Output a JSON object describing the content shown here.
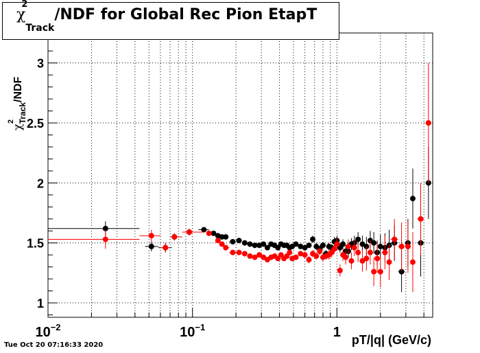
{
  "chart_data": {
    "type": "scatter",
    "title": {
      "chi": "χ",
      "sup": "2",
      "sub": "Track",
      "rest": "/NDF for Global Rec Pion EtapT"
    },
    "xlabel": "pT/|q| (GeV/c)",
    "ylabel": {
      "chi": "χ",
      "sup": "2",
      "sub": "Track",
      "rest": "/NDF"
    },
    "x_scale": "log",
    "xlim": [
      0.01,
      4.6
    ],
    "ylim": [
      0.88,
      3.25
    ],
    "x_ticks": [
      {
        "value": 0.01,
        "base": "10",
        "exp": "−2"
      },
      {
        "value": 0.1,
        "base": "10",
        "exp": "−1"
      },
      {
        "value": 1,
        "base": "1",
        "exp": ""
      }
    ],
    "y_ticks": [
      {
        "value": 1,
        "label": "1"
      },
      {
        "value": 1.5,
        "label": "1.5"
      },
      {
        "value": 2,
        "label": "2"
      },
      {
        "value": 2.5,
        "label": "2.5"
      },
      {
        "value": 3,
        "label": "3"
      }
    ],
    "grid": true,
    "series": [
      {
        "color": "#000000",
        "points": [
          [
            0.025,
            1.62,
            0.06,
            0.01,
            0.043
          ],
          [
            0.052,
            1.47,
            0.04,
            0.047,
            0.058
          ],
          [
            0.065,
            1.46,
            0.04,
            0.058,
            0.072
          ],
          [
            0.075,
            1.55,
            0.03,
            0.072,
            0.085
          ],
          [
            0.095,
            1.59,
            0.02,
            0.085,
            0.107
          ],
          [
            0.12,
            1.61,
            0.02,
            0.11,
            0.13
          ],
          [
            0.14,
            1.58,
            0.02,
            0.135,
            0.145
          ],
          [
            0.15,
            1.56,
            0.02,
            0.145,
            0.155
          ],
          [
            0.16,
            1.55,
            0.02,
            0.155,
            0.165
          ],
          [
            0.17,
            1.55,
            0.02,
            0.165,
            0.175
          ],
          [
            0.19,
            1.51,
            0.02,
            0.18,
            0.2
          ],
          [
            0.21,
            1.52,
            0.02,
            0.2,
            0.22
          ],
          [
            0.23,
            1.5,
            0.02,
            0.22,
            0.24
          ],
          [
            0.25,
            1.49,
            0.02,
            0.24,
            0.26
          ],
          [
            0.27,
            1.48,
            0.02,
            0.26,
            0.28
          ],
          [
            0.29,
            1.48,
            0.02,
            0.28,
            0.3
          ],
          [
            0.31,
            1.49,
            0.02,
            0.3,
            0.32
          ],
          [
            0.33,
            1.46,
            0.02,
            0.32,
            0.34
          ],
          [
            0.35,
            1.49,
            0.02,
            0.34,
            0.36
          ],
          [
            0.37,
            1.48,
            0.02,
            0.36,
            0.38
          ],
          [
            0.39,
            1.46,
            0.02,
            0.38,
            0.4
          ],
          [
            0.41,
            1.49,
            0.02,
            0.4,
            0.42
          ],
          [
            0.43,
            1.48,
            0.02,
            0.42,
            0.44
          ],
          [
            0.45,
            1.48,
            0.02,
            0.44,
            0.46
          ],
          [
            0.47,
            1.46,
            0.02,
            0.46,
            0.48
          ],
          [
            0.49,
            1.47,
            0.02,
            0.48,
            0.5
          ],
          [
            0.52,
            1.49,
            0.02,
            0.5,
            0.54
          ],
          [
            0.56,
            1.47,
            0.02,
            0.54,
            0.58
          ],
          [
            0.6,
            1.46,
            0.02,
            0.58,
            0.62
          ],
          [
            0.64,
            1.48,
            0.02,
            0.62,
            0.66
          ],
          [
            0.68,
            1.53,
            0.03,
            0.66,
            0.7
          ],
          [
            0.72,
            1.47,
            0.03,
            0.7,
            0.74
          ],
          [
            0.76,
            1.45,
            0.03,
            0.74,
            0.78
          ],
          [
            0.8,
            1.48,
            0.03,
            0.78,
            0.82
          ],
          [
            0.84,
            1.41,
            0.03,
            0.82,
            0.86
          ],
          [
            0.88,
            1.47,
            0.03,
            0.86,
            0.9
          ],
          [
            0.92,
            1.46,
            0.03,
            0.9,
            0.94
          ],
          [
            0.96,
            1.51,
            0.04,
            0.94,
            0.98
          ],
          [
            1.0,
            1.52,
            0.04,
            0.98,
            1.02
          ],
          [
            1.05,
            1.46,
            0.04,
            1.02,
            1.08
          ],
          [
            1.1,
            1.49,
            0.04,
            1.08,
            1.13
          ],
          [
            1.15,
            1.43,
            0.05,
            1.13,
            1.18
          ],
          [
            1.2,
            1.43,
            0.05,
            1.18,
            1.23
          ],
          [
            1.26,
            1.49,
            0.05,
            1.23,
            1.29
          ],
          [
            1.32,
            1.5,
            0.06,
            1.29,
            1.35
          ],
          [
            1.4,
            1.53,
            0.06,
            1.35,
            1.45
          ],
          [
            1.5,
            1.49,
            0.07,
            1.45,
            1.55
          ],
          [
            1.6,
            1.47,
            0.08,
            1.55,
            1.65
          ],
          [
            1.7,
            1.52,
            0.08,
            1.65,
            1.75
          ],
          [
            1.8,
            1.5,
            0.09,
            1.75,
            1.85
          ],
          [
            1.9,
            1.42,
            0.1,
            1.85,
            1.95
          ],
          [
            2.0,
            1.47,
            0.1,
            1.95,
            2.05
          ],
          [
            2.15,
            1.46,
            0.12,
            2.05,
            2.25
          ],
          [
            2.3,
            1.48,
            0.13,
            2.25,
            2.35
          ],
          [
            2.5,
            1.5,
            0.15,
            2.35,
            2.65
          ],
          [
            2.8,
            1.26,
            0.17,
            2.65,
            2.95
          ],
          [
            3.1,
            1.5,
            0.2,
            2.95,
            3.25
          ],
          [
            3.35,
            1.87,
            0.25,
            3.25,
            3.45
          ],
          [
            3.8,
            1.5,
            0.28,
            3.6,
            4.0
          ],
          [
            4.3,
            2.0,
            0.3,
            4.1,
            4.5
          ]
        ]
      },
      {
        "color": "#ff0000",
        "points": [
          [
            0.025,
            1.53,
            0.08,
            0.01,
            0.043
          ],
          [
            0.052,
            1.56,
            0.05,
            0.043,
            0.06
          ],
          [
            0.065,
            1.46,
            0.04,
            0.06,
            0.07
          ],
          [
            0.075,
            1.55,
            0.03,
            0.07,
            0.085
          ],
          [
            0.095,
            1.59,
            0.03,
            0.085,
            0.12
          ],
          [
            0.13,
            1.58,
            0.02,
            0.125,
            0.135
          ],
          [
            0.15,
            1.52,
            0.02,
            0.145,
            0.155
          ],
          [
            0.16,
            1.49,
            0.02,
            0.155,
            0.165
          ],
          [
            0.17,
            1.46,
            0.02,
            0.165,
            0.18
          ],
          [
            0.19,
            1.42,
            0.02,
            0.18,
            0.2
          ],
          [
            0.21,
            1.42,
            0.02,
            0.2,
            0.22
          ],
          [
            0.23,
            1.41,
            0.02,
            0.22,
            0.24
          ],
          [
            0.25,
            1.39,
            0.02,
            0.24,
            0.26
          ],
          [
            0.27,
            1.38,
            0.02,
            0.26,
            0.28
          ],
          [
            0.29,
            1.4,
            0.02,
            0.28,
            0.3
          ],
          [
            0.31,
            1.38,
            0.02,
            0.3,
            0.32
          ],
          [
            0.33,
            1.36,
            0.02,
            0.32,
            0.34
          ],
          [
            0.35,
            1.38,
            0.02,
            0.34,
            0.36
          ],
          [
            0.37,
            1.39,
            0.02,
            0.36,
            0.38
          ],
          [
            0.39,
            1.37,
            0.02,
            0.38,
            0.4
          ],
          [
            0.41,
            1.4,
            0.02,
            0.4,
            0.42
          ],
          [
            0.43,
            1.37,
            0.02,
            0.42,
            0.44
          ],
          [
            0.45,
            1.39,
            0.02,
            0.44,
            0.46
          ],
          [
            0.47,
            1.42,
            0.02,
            0.46,
            0.48
          ],
          [
            0.49,
            1.37,
            0.02,
            0.48,
            0.5
          ],
          [
            0.52,
            1.38,
            0.02,
            0.5,
            0.54
          ],
          [
            0.56,
            1.41,
            0.02,
            0.54,
            0.58
          ],
          [
            0.6,
            1.4,
            0.03,
            0.58,
            0.62
          ],
          [
            0.64,
            1.36,
            0.03,
            0.62,
            0.66
          ],
          [
            0.68,
            1.41,
            0.03,
            0.66,
            0.7
          ],
          [
            0.72,
            1.39,
            0.03,
            0.7,
            0.74
          ],
          [
            0.76,
            1.43,
            0.03,
            0.74,
            0.78
          ],
          [
            0.8,
            1.38,
            0.03,
            0.78,
            0.82
          ],
          [
            0.84,
            1.39,
            0.03,
            0.82,
            0.86
          ],
          [
            0.88,
            1.4,
            0.04,
            0.86,
            0.9
          ],
          [
            0.92,
            1.42,
            0.04,
            0.9,
            0.94
          ],
          [
            0.96,
            1.45,
            0.04,
            0.94,
            0.98
          ],
          [
            1.0,
            1.49,
            0.05,
            0.98,
            1.02
          ],
          [
            1.05,
            1.27,
            0.05,
            1.02,
            1.08
          ],
          [
            1.1,
            1.4,
            0.05,
            1.08,
            1.13
          ],
          [
            1.15,
            1.38,
            0.06,
            1.13,
            1.18
          ],
          [
            1.2,
            1.47,
            0.06,
            1.18,
            1.23
          ],
          [
            1.26,
            1.35,
            0.07,
            1.23,
            1.29
          ],
          [
            1.32,
            1.46,
            0.07,
            1.29,
            1.35
          ],
          [
            1.4,
            1.42,
            0.08,
            1.35,
            1.45
          ],
          [
            1.5,
            1.35,
            0.09,
            1.45,
            1.55
          ],
          [
            1.6,
            1.37,
            0.1,
            1.55,
            1.65
          ],
          [
            1.7,
            1.42,
            0.1,
            1.65,
            1.75
          ],
          [
            1.8,
            1.26,
            0.12,
            1.75,
            1.85
          ],
          [
            1.9,
            1.37,
            0.12,
            1.85,
            1.95
          ],
          [
            2.0,
            1.26,
            0.13,
            1.95,
            2.05
          ],
          [
            2.15,
            1.42,
            0.14,
            2.05,
            2.25
          ],
          [
            2.3,
            1.34,
            0.15,
            2.25,
            2.35
          ],
          [
            2.5,
            1.53,
            0.17,
            2.35,
            2.65
          ],
          [
            2.8,
            1.47,
            0.2,
            2.65,
            2.95
          ],
          [
            3.1,
            1.47,
            0.22,
            2.95,
            3.25
          ],
          [
            3.35,
            1.34,
            0.25,
            3.25,
            3.45
          ],
          [
            3.8,
            1.7,
            0.3,
            3.6,
            4.0
          ],
          [
            4.3,
            2.5,
            0.5,
            4.1,
            4.5
          ]
        ]
      }
    ],
    "footer": "Tue Oct 20 07:16:33 2020"
  }
}
